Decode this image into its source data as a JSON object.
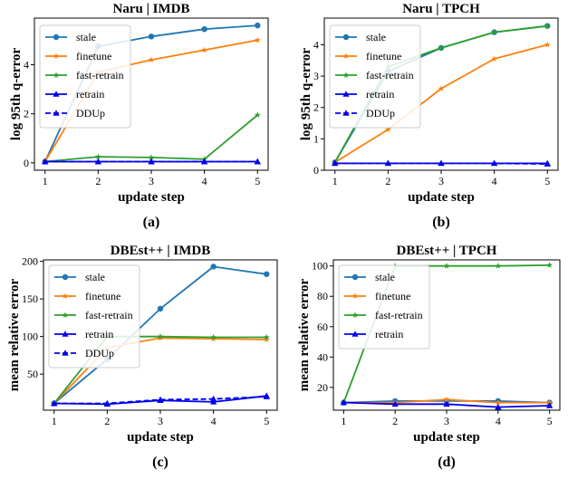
{
  "colors": {
    "stale": "#1f77b4",
    "finetune": "#ff7f0e",
    "fast-retrain": "#2ca02c",
    "retrain": "#0000ee",
    "DDUp": "#0000ee"
  },
  "chart_data": [
    {
      "type": "line",
      "title": "Naru | IMDB",
      "xlabel": "update step",
      "ylabel": "log 95th q-error",
      "caption": "(a)",
      "x": [
        1,
        2,
        3,
        4,
        5
      ],
      "xlim": [
        0.8,
        5.2
      ],
      "ylim": [
        -0.3,
        5.9
      ],
      "yticks": [
        0,
        2,
        4
      ],
      "legend": "upper left",
      "series": [
        {
          "name": "stale",
          "marker": "circle",
          "values": [
            0.05,
            4.75,
            5.15,
            5.45,
            5.6
          ]
        },
        {
          "name": "finetune",
          "marker": "star",
          "values": [
            0.05,
            3.7,
            4.2,
            4.6,
            5.0
          ]
        },
        {
          "name": "fast-retrain",
          "marker": "star",
          "values": [
            0.05,
            0.25,
            0.22,
            0.15,
            1.95
          ]
        },
        {
          "name": "retrain",
          "marker": "triangle",
          "values": [
            0.05,
            0.05,
            0.05,
            0.05,
            0.05
          ]
        },
        {
          "name": "DDUp",
          "marker": "triangle",
          "dashed": true,
          "values": [
            0.05,
            0.05,
            0.05,
            0.05,
            0.05
          ]
        }
      ]
    },
    {
      "type": "line",
      "title": "Naru | TPCH",
      "xlabel": "update step",
      "ylabel": "log 95th q-error",
      "caption": "(b)",
      "x": [
        1,
        2,
        3,
        4,
        5
      ],
      "xlim": [
        0.8,
        5.2
      ],
      "ylim": [
        0,
        4.85
      ],
      "yticks": [
        0,
        1,
        2,
        3,
        4
      ],
      "legend": "upper left",
      "series": [
        {
          "name": "stale",
          "marker": "circle",
          "values": [
            0.25,
            3.15,
            3.9,
            4.4,
            4.6
          ]
        },
        {
          "name": "finetune",
          "marker": "star",
          "values": [
            0.25,
            1.3,
            2.6,
            3.55,
            4.0
          ]
        },
        {
          "name": "fast-retrain",
          "marker": "star",
          "values": [
            0.25,
            3.3,
            3.9,
            4.4,
            4.6
          ]
        },
        {
          "name": "retrain",
          "marker": "triangle",
          "values": [
            0.22,
            0.22,
            0.22,
            0.22,
            0.22
          ]
        },
        {
          "name": "DDUp",
          "marker": "triangle",
          "dashed": true,
          "values": [
            0.22,
            0.22,
            0.22,
            0.22,
            0.2
          ]
        }
      ]
    },
    {
      "type": "line",
      "title": "DBEst++ | IMDB",
      "xlabel": "update step",
      "ylabel": "mean relative error",
      "caption": "(c)",
      "x": [
        1,
        2,
        3,
        4,
        5
      ],
      "xlim": [
        0.8,
        5.2
      ],
      "ylim": [
        2,
        202
      ],
      "yticks": [
        50,
        100,
        150,
        200
      ],
      "legend": "upper left",
      "series": [
        {
          "name": "stale",
          "marker": "circle",
          "values": [
            11,
            70,
            137,
            193,
            183
          ]
        },
        {
          "name": "finetune",
          "marker": "star",
          "values": [
            11,
            85,
            98,
            97,
            96
          ]
        },
        {
          "name": "fast-retrain",
          "marker": "star",
          "values": [
            11,
            100,
            100,
            99,
            99
          ]
        },
        {
          "name": "retrain",
          "marker": "triangle",
          "values": [
            11,
            10,
            15,
            13,
            21
          ]
        },
        {
          "name": "DDUp",
          "marker": "triangle",
          "dashed": true,
          "values": [
            11,
            11,
            16,
            17,
            20
          ]
        }
      ]
    },
    {
      "type": "line",
      "title": "DBEst++ | TPCH",
      "xlabel": "update step",
      "ylabel": "mean relative error",
      "caption": "(d)",
      "x": [
        1,
        2,
        3,
        4,
        5
      ],
      "xlim": [
        0.8,
        5.2
      ],
      "ylim": [
        5,
        104
      ],
      "yticks": [
        20,
        40,
        60,
        80,
        100
      ],
      "legend": "upper left",
      "series": [
        {
          "name": "stale",
          "marker": "circle",
          "values": [
            10,
            11,
            11,
            11,
            10
          ]
        },
        {
          "name": "finetune",
          "marker": "star",
          "values": [
            10,
            10,
            12,
            10,
            10
          ]
        },
        {
          "name": "fast-retrain",
          "marker": "star",
          "values": [
            10,
            100,
            100,
            100,
            100.5
          ]
        },
        {
          "name": "retrain",
          "marker": "triangle",
          "values": [
            10,
            9,
            9,
            7,
            8
          ]
        }
      ]
    }
  ]
}
